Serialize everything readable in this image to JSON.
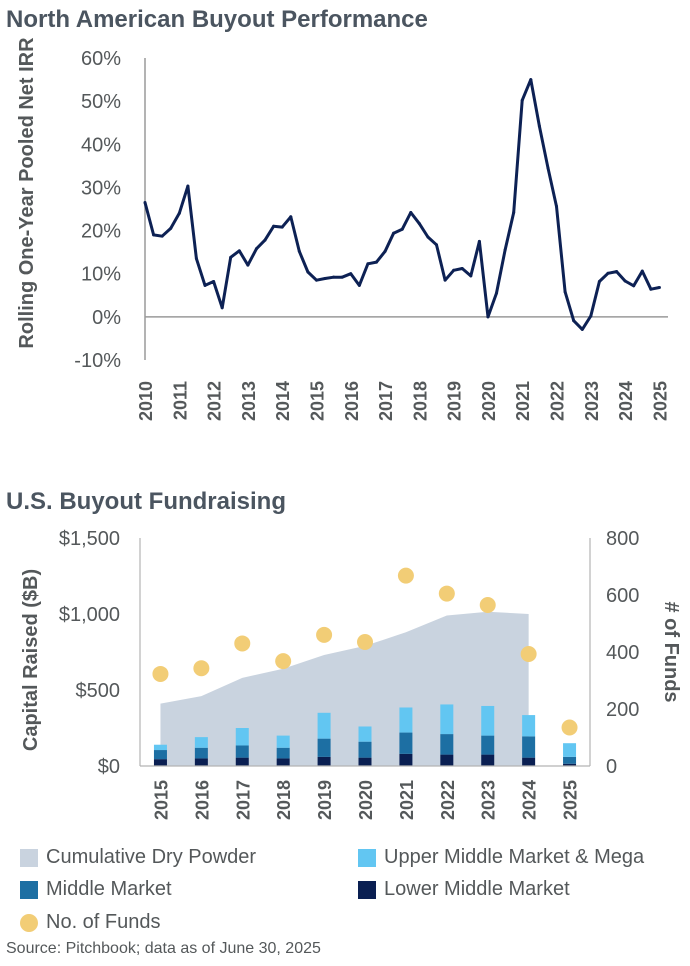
{
  "source": "Source: Pitchbook; data as of June 30, 2025",
  "colors": {
    "line": "#0d2154",
    "dry_powder": "#c9d3df",
    "upper_middle_market_mega": "#62c6f2",
    "middle_market": "#1d6fa3",
    "lower_middle_market": "#0a1f52",
    "funds": "#f2cd76",
    "text": "#54585a",
    "title": "#4b5560"
  },
  "chart_data": [
    {
      "type": "line",
      "title": "North American Buyout Performance",
      "ylabel": "Rolling One-Year Pooled Net IRR",
      "xlabel": "",
      "ylim": [
        -10,
        60
      ],
      "xlim": [
        2010,
        2025.25
      ],
      "yticks": [
        -10,
        0,
        10,
        20,
        30,
        40,
        50,
        60
      ],
      "yticklabels": [
        "-10%",
        "0%",
        "10%",
        "20%",
        "30%",
        "40%",
        "50%",
        "60%"
      ],
      "xticks": [
        2010,
        2011,
        2012,
        2013,
        2014,
        2015,
        2016,
        2017,
        2018,
        2019,
        2020,
        2021,
        2022,
        2023,
        2024,
        2025
      ],
      "xticklabels": [
        "2010",
        "2011",
        "2012",
        "2013",
        "2014",
        "2015",
        "2016",
        "2017",
        "2018",
        "2019",
        "2020",
        "2021",
        "2022",
        "2023",
        "2024",
        "2025"
      ],
      "x": [
        2010.0,
        2010.25,
        2010.5,
        2010.75,
        2011.0,
        2011.25,
        2011.5,
        2011.75,
        2012.0,
        2012.25,
        2012.5,
        2012.75,
        2013.0,
        2013.25,
        2013.5,
        2013.75,
        2014.0,
        2014.25,
        2014.5,
        2014.75,
        2015.0,
        2015.25,
        2015.5,
        2015.75,
        2016.0,
        2016.25,
        2016.5,
        2016.75,
        2017.0,
        2017.25,
        2017.5,
        2017.75,
        2018.0,
        2018.25,
        2018.5,
        2018.75,
        2019.0,
        2019.25,
        2019.5,
        2019.75,
        2020.0,
        2020.25,
        2020.5,
        2020.75,
        2021.0,
        2021.25,
        2021.5,
        2021.75,
        2022.0,
        2022.25,
        2022.5,
        2022.75,
        2023.0,
        2023.25,
        2023.5,
        2023.75,
        2024.0,
        2024.25,
        2024.5,
        2024.75,
        2025.0,
        2025.25
      ],
      "values": [
        26.5,
        19,
        18.7,
        20.5,
        24,
        30.3,
        13.5,
        7.3,
        8.2,
        2.1,
        13.8,
        15.3,
        12.0,
        15.8,
        17.8,
        21.0,
        20.8,
        23.2,
        15.2,
        10.4,
        8.5,
        8.9,
        9.2,
        9.2,
        10.0,
        7.3,
        12.3,
        12.7,
        15.2,
        19.4,
        20.3,
        24.2,
        21.6,
        18.5,
        16.7,
        8.5,
        10.8,
        11.2,
        9.5,
        17.5,
        0.0,
        5.5,
        15.5,
        24.2,
        50.2,
        55.0,
        44.2,
        34.5,
        25.6,
        5.8,
        -0.9,
        -2.9,
        0.2,
        8.2,
        10.1,
        10.5,
        8.3,
        7.2,
        10.6,
        6.4,
        6.8,
        null
      ]
    },
    {
      "type": "bar",
      "title": "U.S. Buyout Fundraising",
      "ylabel": "Capital Raised ($B)",
      "y2label": "# of Funds",
      "ylim": [
        0,
        1500
      ],
      "y2lim": [
        0,
        800
      ],
      "yticklabels": [
        "$0",
        "$500",
        "$1,000",
        "$1,500"
      ],
      "yticks": [
        0,
        500,
        1000,
        1500
      ],
      "y2ticks": [
        0,
        200,
        400,
        600,
        800
      ],
      "y2ticklabels": [
        "0",
        "200",
        "400",
        "600",
        "800"
      ],
      "categories": [
        "2015",
        "2016",
        "2017",
        "2018",
        "2019",
        "2020",
        "2021",
        "2022",
        "2023",
        "2024",
        "2025"
      ],
      "area_series": {
        "name": "Cumulative Dry Powder",
        "values": [
          410,
          460,
          580,
          640,
          730,
          790,
          880,
          990,
          1015,
          1000,
          null
        ]
      },
      "series": [
        {
          "name": "Lower Middle Market",
          "values": [
            45,
            50,
            55,
            50,
            60,
            55,
            80,
            75,
            75,
            55,
            15
          ]
        },
        {
          "name": "Middle Market",
          "values": [
            60,
            70,
            80,
            70,
            120,
            105,
            140,
            135,
            125,
            140,
            45
          ]
        },
        {
          "name": "Upper Middle Market & Mega",
          "values": [
            35,
            70,
            115,
            80,
            170,
            100,
            165,
            195,
            195,
            140,
            90
          ]
        }
      ],
      "scatter_series": {
        "name": "No. of Funds",
        "values": [
          323,
          343,
          430,
          368,
          460,
          435,
          668,
          605,
          565,
          393,
          135
        ]
      },
      "legend": [
        "Cumulative Dry Powder",
        "Upper Middle Market & Mega",
        "Middle Market",
        "Lower Middle Market",
        "No. of Funds"
      ]
    }
  ]
}
